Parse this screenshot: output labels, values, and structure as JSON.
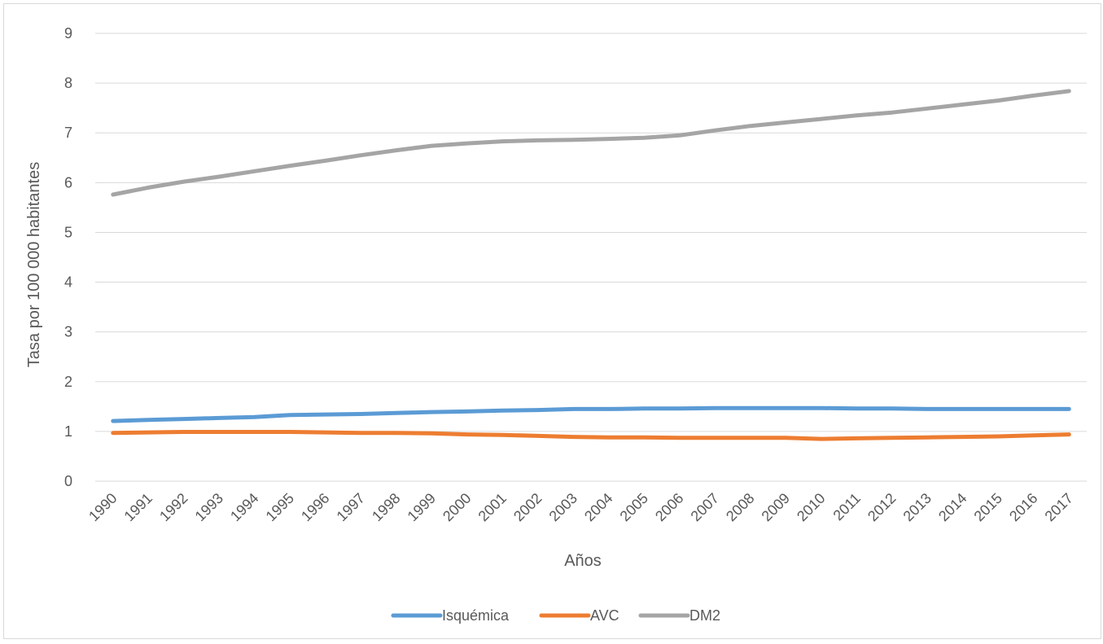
{
  "chart_data": {
    "type": "line",
    "title": "",
    "xlabel": "Años",
    "ylabel": "Tasa por 100 000 habitantes",
    "ylim": [
      0,
      9
    ],
    "yticks": [
      0,
      1,
      2,
      3,
      4,
      5,
      6,
      7,
      8,
      9
    ],
    "grid": true,
    "legend_position": "bottom",
    "categories": [
      "1990",
      "1991",
      "1992",
      "1993",
      "1994",
      "1995",
      "1996",
      "1997",
      "1998",
      "1999",
      "2000",
      "2001",
      "2002",
      "2003",
      "2004",
      "2005",
      "2006",
      "2007",
      "2008",
      "2009",
      "2010",
      "2011",
      "2012",
      "2013",
      "2014",
      "2015",
      "2016",
      "2017"
    ],
    "series": [
      {
        "name": "Isquémica",
        "color": "#5b9bd5",
        "values": [
          1.21,
          1.23,
          1.25,
          1.27,
          1.29,
          1.33,
          1.34,
          1.35,
          1.37,
          1.39,
          1.4,
          1.42,
          1.43,
          1.45,
          1.45,
          1.46,
          1.46,
          1.47,
          1.47,
          1.47,
          1.47,
          1.46,
          1.46,
          1.45,
          1.45,
          1.45,
          1.45,
          1.45
        ]
      },
      {
        "name": "AVC",
        "color": "#ed7d31",
        "values": [
          0.97,
          0.98,
          0.99,
          0.99,
          0.99,
          0.99,
          0.98,
          0.97,
          0.97,
          0.96,
          0.94,
          0.93,
          0.91,
          0.89,
          0.88,
          0.88,
          0.87,
          0.87,
          0.87,
          0.87,
          0.85,
          0.86,
          0.87,
          0.88,
          0.89,
          0.9,
          0.92,
          0.94
        ]
      },
      {
        "name": "DM2",
        "color": "#a5a5a5",
        "values": [
          5.76,
          5.9,
          6.02,
          6.12,
          6.23,
          6.34,
          6.44,
          6.55,
          6.65,
          6.74,
          6.79,
          6.83,
          6.85,
          6.86,
          6.88,
          6.9,
          6.95,
          7.05,
          7.14,
          7.21,
          7.28,
          7.35,
          7.41,
          7.49,
          7.57,
          7.65,
          7.75,
          7.84
        ]
      }
    ]
  }
}
